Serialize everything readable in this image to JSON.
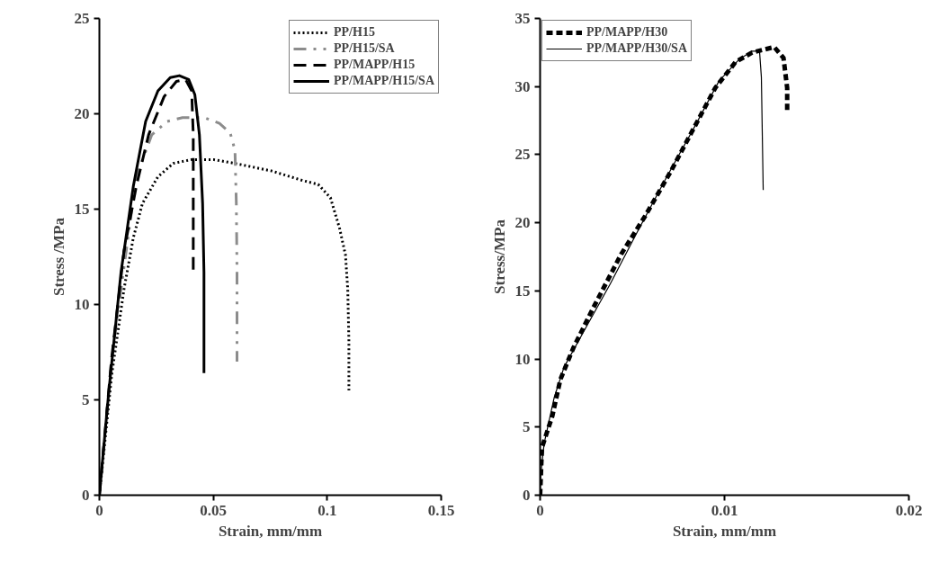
{
  "chart_data": [
    {
      "type": "line",
      "xlabel": "Strain, mm/mm",
      "ylabel": "Stress /MPa",
      "xlim": [
        0,
        0.15
      ],
      "ylim": [
        0,
        25
      ],
      "xticks": [
        0,
        0.05,
        0.1,
        0.15
      ],
      "yticks": [
        0,
        5,
        10,
        15,
        20,
        25
      ],
      "grid": false,
      "legend": "top right",
      "marker": "none",
      "series": [
        {
          "name": "PP/H15",
          "color": "#000000",
          "line_style": "dotted",
          "x": [
            0,
            0.0054,
            0.0108,
            0.0149,
            0.0189,
            0.0257,
            0.0324,
            0.0405,
            0.05,
            0.0595,
            0.0757,
            0.0892,
            0.096,
            0.1014,
            0.1054,
            0.108,
            0.109,
            0.1095,
            0.1095
          ],
          "values": [
            0,
            6.3,
            10.8,
            13.5,
            15.3,
            16.7,
            17.4,
            17.6,
            17.6,
            17.4,
            17.0,
            16.5,
            16.3,
            15.6,
            14.0,
            12.6,
            10.8,
            8.1,
            5.5
          ]
        },
        {
          "name": "PP/H15/SA",
          "color": "#8c8c8c",
          "line_style": "dashed",
          "x": [
            0,
            0.0054,
            0.0095,
            0.0162,
            0.023,
            0.0297,
            0.0365,
            0.046,
            0.0527,
            0.0574,
            0.0595,
            0.0601,
            0.0604,
            0.0604
          ],
          "values": [
            0,
            7.2,
            10.8,
            16.7,
            18.9,
            19.6,
            19.8,
            19.8,
            19.5,
            19.0,
            18.1,
            15.3,
            11.7,
            7.0
          ]
        },
        {
          "name": "PP/MAPP/H15",
          "color": "#000000",
          "line_style": "dashed",
          "x": [
            0,
            0.0054,
            0.0108,
            0.0162,
            0.0216,
            0.0284,
            0.0338,
            0.0378,
            0.0405,
            0.0412,
            0.0412,
            0.0412
          ],
          "values": [
            0,
            7.2,
            12.8,
            16.2,
            18.9,
            20.9,
            21.7,
            21.8,
            21.2,
            18.9,
            15.3,
            11.7
          ]
        },
        {
          "name": "PP/MAPP/H15/SA",
          "color": "#000000",
          "line_style": "solid",
          "x": [
            0,
            0.0041,
            0.0095,
            0.0149,
            0.0203,
            0.0257,
            0.0311,
            0.0351,
            0.0392,
            0.0419,
            0.0439,
            0.0453,
            0.0459,
            0.0459
          ],
          "values": [
            0,
            5.4,
            11.7,
            16.2,
            19.6,
            21.2,
            21.9,
            22.0,
            21.8,
            21.0,
            18.9,
            15.3,
            11.7,
            6.4
          ]
        }
      ]
    },
    {
      "type": "line",
      "xlabel": "Strain, mm/mm",
      "ylabel": "Stress/MPa",
      "xlim": [
        0,
        0.02
      ],
      "ylim": [
        0,
        35
      ],
      "xticks": [
        0,
        0.01,
        0.02
      ],
      "yticks": [
        0,
        5,
        10,
        15,
        20,
        25,
        30,
        35
      ],
      "grid": false,
      "legend": "top left",
      "marker": "none",
      "series": [
        {
          "name": "PP/MAPP/H30",
          "color": "#000000",
          "line_style": "dashed",
          "x": [
            0,
            0.0001,
            0.00066,
            0.0011,
            0.0018,
            0.0029,
            0.0044,
            0.0057,
            0.0071,
            0.0082,
            0.0095,
            0.0106,
            0.0115,
            0.0127,
            0.0132,
            0.0134,
            0.0134
          ],
          "values": [
            0,
            3.5,
            5.8,
            8.5,
            10.8,
            13.8,
            17.7,
            20.5,
            23.8,
            26.6,
            29.9,
            31.8,
            32.5,
            32.9,
            32.1,
            29.9,
            28.1
          ]
        },
        {
          "name": "PP/MAPP/H30/SA",
          "color": "#000000",
          "line_style": "solid",
          "x": [
            0,
            4e-05,
            0.00022,
            0.00077,
            0.0013,
            0.0024,
            0.0038,
            0.0053,
            0.0068,
            0.0084,
            0.0097,
            0.0108,
            0.0115,
            0.0119,
            0.012,
            0.0121
          ],
          "values": [
            0,
            1.6,
            3.8,
            7.2,
            9.4,
            12.1,
            15.5,
            19.4,
            23.2,
            27.1,
            30.4,
            32.0,
            32.6,
            32.6,
            30.7,
            22.4
          ]
        }
      ]
    }
  ]
}
